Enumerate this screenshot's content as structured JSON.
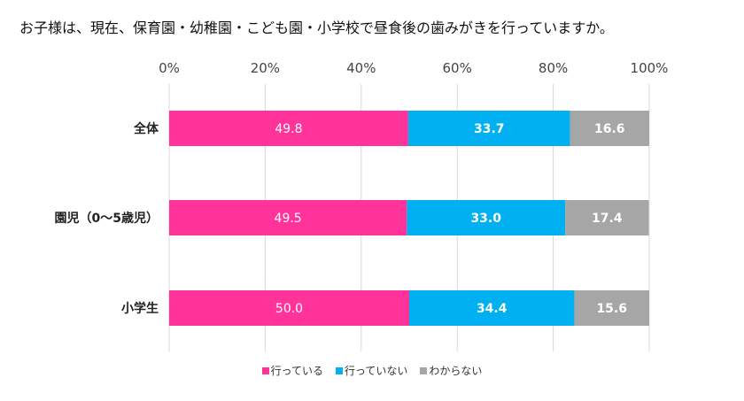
{
  "title": "お子様は、現在、保育園・幼稚園・こども園・小学校で昼食後の歯みがきを行っていますか。",
  "chart_data": {
    "type": "bar",
    "orientation": "horizontal",
    "stacked": "percent",
    "title": "お子様は、現在、保育園・幼稚園・こども園・小学校で昼食後の歯みがきを行っていますか。",
    "categories": [
      "全体",
      "園児（0～5歳児）",
      "小学生"
    ],
    "series": [
      {
        "name": "行っている",
        "color": "#ff3399",
        "values": [
          49.8,
          49.5,
          50.0
        ]
      },
      {
        "name": "行っていない",
        "color": "#00b0f0",
        "values": [
          33.7,
          33.0,
          34.4
        ]
      },
      {
        "name": "わからない",
        "color": "#a6a6a6",
        "values": [
          16.6,
          17.4,
          15.6
        ]
      }
    ],
    "x_ticks": [
      "0%",
      "20%",
      "40%",
      "60%",
      "80%",
      "100%"
    ],
    "xlim": [
      0,
      100
    ],
    "xlabel": "",
    "ylabel": "",
    "grid": true,
    "legend_position": "bottom"
  }
}
